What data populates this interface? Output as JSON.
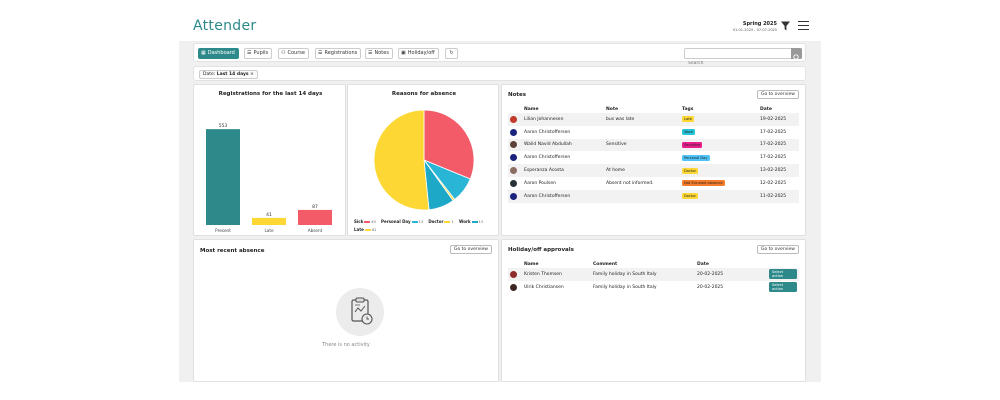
{
  "header": {
    "logo": "Attender",
    "term_title": "Spring 2025",
    "term_dates": "01-01-2025 - 07-07-2025",
    "filter_icon": "filter-icon",
    "menu_icon": "hamburger-menu-icon"
  },
  "toolbar": {
    "buttons": [
      {
        "label": "Dashboard",
        "icon": "dashboard-icon"
      },
      {
        "label": "Pupils",
        "icon": "list-icon"
      },
      {
        "label": "Course",
        "icon": "users-icon"
      },
      {
        "label": "Registrations",
        "icon": "list-icon"
      },
      {
        "label": "Notes",
        "icon": "notes-icon"
      },
      {
        "label": "Holiday/off",
        "icon": "calendar-icon"
      }
    ],
    "refresh_icon": "refresh-icon",
    "search_placeholder": "Search",
    "search_icon": "search-icon"
  },
  "filter": {
    "prefix": "Date:",
    "value": "Last 14 days",
    "remove": "×"
  },
  "registrations": {
    "title": "Registrations for the last 14 days"
  },
  "chart_data": [
    {
      "type": "bar",
      "title": "Registrations for the last 14 days",
      "categories": [
        "Present",
        "Late",
        "Absent"
      ],
      "values": [
        553,
        41,
        87
      ],
      "colors": [
        "#2e8a8a",
        "#fdd835",
        "#f45b69"
      ],
      "ylim": [
        0,
        600
      ],
      "grid": false
    },
    {
      "type": "pie",
      "title": "Reasons for absence",
      "labels": [
        "Sick",
        "Personal Day",
        "Doctor",
        "Work",
        "Late"
      ],
      "values": [
        49,
        13,
        1,
        13,
        81
      ],
      "colors": [
        "#f45b69",
        "#29b6d6",
        "#fdd835",
        "#1ea8c8",
        "#fdd835"
      ],
      "legend": "bottom"
    }
  ],
  "reasons": {
    "title": "Reasons for absence"
  },
  "notes": {
    "title": "Notes",
    "overview": "Go to overview",
    "columns": [
      "Name",
      "Note",
      "Tags",
      "Date"
    ],
    "rows": [
      {
        "name": "Lilian Johannesen",
        "note": "bus was late",
        "tag": "Late",
        "tag_color": "#fdd835",
        "date": "19-02-2025",
        "avatar": "#c0392b"
      },
      {
        "name": "Aaron Christoffersen",
        "note": "",
        "tag": "Work",
        "tag_color": "#26c6da",
        "date": "17-02-2025",
        "avatar": "#1a237e"
      },
      {
        "name": "Walid Navid Abdullah",
        "note": "Sensitive",
        "tag": "Sensitive",
        "tag_color": "#e91e8c",
        "date": "17-02-2025",
        "avatar": "#5d4037"
      },
      {
        "name": "Aaron Christoffersen",
        "note": "",
        "tag": "Personal Day",
        "tag_color": "#4fc3f7",
        "date": "17-02-2025",
        "avatar": "#1a237e"
      },
      {
        "name": "Esperanza Acosta",
        "note": "At home",
        "tag": "Doctor",
        "tag_color": "#fdd835",
        "date": "13-02-2025",
        "avatar": "#8d6e63"
      },
      {
        "name": "Aaron Poulsen",
        "note": "Absent not informed.",
        "tag": "Not Excused absence",
        "tag_color": "#f57c2a",
        "date": "12-02-2025",
        "avatar": "#263238"
      },
      {
        "name": "Aaron Christoffersen",
        "note": "",
        "tag": "Doctor",
        "tag_color": "#fdd835",
        "date": "11-02-2025",
        "avatar": "#1a237e"
      }
    ]
  },
  "recent_absence": {
    "title": "Most recent absence",
    "overview": "Go to overview",
    "empty_text": "There is no activity",
    "empty_icon": "clipboard-clock-icon"
  },
  "holiday": {
    "title": "Holiday/off approvals",
    "overview": "Go to overview",
    "columns": [
      "Name",
      "Comment",
      "Date",
      ""
    ],
    "rows": [
      {
        "name": "Kristen Thomsen",
        "comment": "Family holiday in South Italy",
        "date": "20-02-2025",
        "action": "Select action",
        "avatar": "#8e2b2b"
      },
      {
        "name": "Ulrik Christiansen",
        "comment": "Family holiday in South Italy",
        "date": "20-02-2025",
        "action": "Select action",
        "avatar": "#3e2723"
      }
    ]
  }
}
